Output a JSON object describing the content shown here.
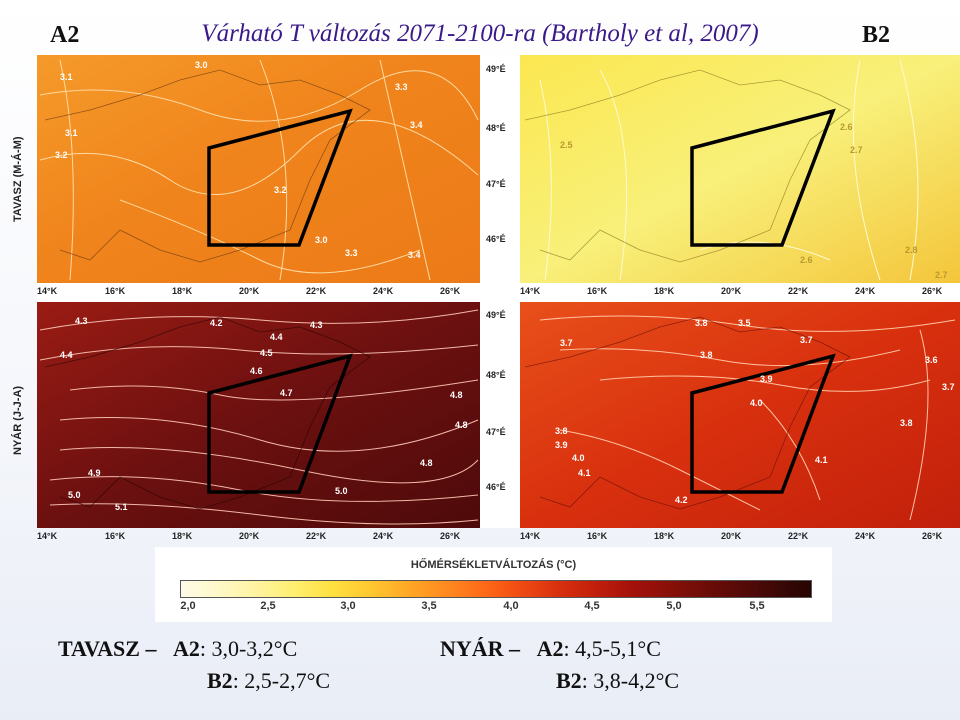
{
  "header": {
    "left_label": "A2",
    "right_label": "B2",
    "title": "Várható T változás 2071-2100-ra (Bartholy et al, 2007)"
  },
  "row_labels": {
    "spring": "TAVASZ (M-Á-M)",
    "summer": "NYÁR (J-J-A)"
  },
  "axis": {
    "lon_labels": [
      "14°K",
      "16°K",
      "18°K",
      "20°K",
      "22°K",
      "24°K",
      "26°K"
    ],
    "lat_labels": [
      "49°É",
      "48°É",
      "47°É",
      "46°É"
    ]
  },
  "maps": [
    {
      "id": "spring-a2",
      "contour_labels": [
        "3.1",
        "3.2",
        "3.3",
        "3.4",
        "3.0",
        "3.3",
        "3.4",
        "3.1",
        "3.2",
        "3.0"
      ],
      "color_fill": "#f08a1e"
    },
    {
      "id": "spring-b2",
      "contour_labels": [
        "2.5",
        "2.6",
        "2.7",
        "2.8",
        "2.6",
        "2.7"
      ],
      "color_fill": "#f7e04a"
    },
    {
      "id": "summer-a2",
      "contour_labels": [
        "4.3",
        "4.2",
        "4.3",
        "4.4",
        "4.5",
        "4.4",
        "4.6",
        "4.7",
        "4.8",
        "4.8",
        "4.9",
        "5.0",
        "5.1",
        "5.0",
        "4.8"
      ],
      "color_fill": "#7a1410"
    },
    {
      "id": "summer-b2",
      "contour_labels": [
        "3.8",
        "3.5",
        "3.7",
        "3.7",
        "3.8",
        "3.9",
        "4.0",
        "3.8",
        "3.9",
        "4.0",
        "4.1",
        "4.2",
        "4.1",
        "3.6",
        "3.7",
        "3.8"
      ],
      "color_fill": "#de3a12"
    }
  ],
  "legend": {
    "title": "HŐMÉRSÉKLETVÁLTOZÁS (°C)",
    "ticks": [
      "2,0",
      "2,5",
      "3,0",
      "3,5",
      "4,0",
      "4,5",
      "5,0",
      "5,5"
    ]
  },
  "summary": {
    "spring_label": "TAVASZ –",
    "spring_a2_key": "A2",
    "spring_a2_value": ": 3,0-3,2°C",
    "spring_b2_key": "B2",
    "spring_b2_value": ": 2,5-2,7°C",
    "summer_label": "NYÁR –",
    "summer_a2_key": "A2",
    "summer_a2_value": ": 4,5-5,1°C",
    "summer_b2_key": "B2",
    "summer_b2_value": ": 3,8-4,2°C"
  }
}
